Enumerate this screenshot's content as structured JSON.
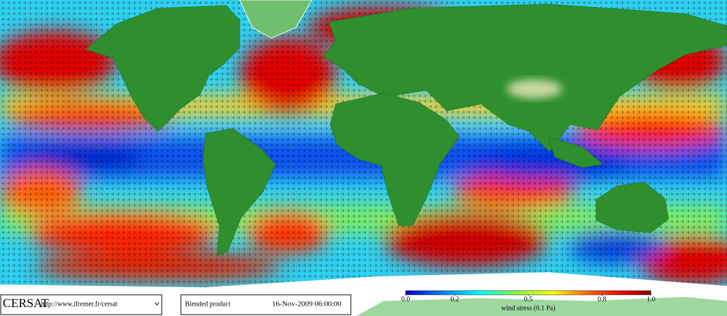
{
  "footer": {
    "logo": "CERSAT",
    "url": "http://www.ifremer.fr/cersat",
    "product": "Blended product",
    "datetime": "16-Nov-2009 06:00:00"
  },
  "colorbar": {
    "range": [
      0,
      1
    ],
    "ticks": [
      {
        "value": 0,
        "label": "0.0"
      },
      0.2,
      0.5,
      0.8,
      {
        "value": 1,
        "label": "1.0"
      }
    ],
    "label": "wind stress (0.1 Pa)"
  }
}
